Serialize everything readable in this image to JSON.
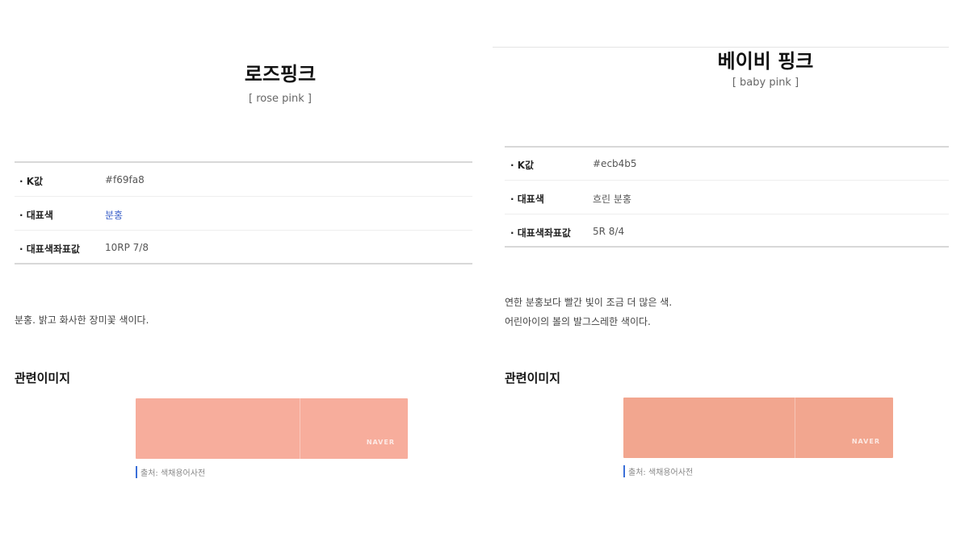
{
  "left": {
    "title": "로즈핑크",
    "subtitle": "[ rose pink ]",
    "rows": [
      {
        "label": "· K값",
        "value": "#f69fa8"
      },
      {
        "label": "· 대표색",
        "value": "분홍"
      },
      {
        "label": "· 대표색좌표값",
        "value": "10RP 7/8"
      }
    ],
    "description": [
      "분홍. 밝고 화사한 장미꽃 색이다."
    ],
    "related_heading": "관련이미지",
    "image_color": "#f7ad9c",
    "watermark": "NAVER",
    "source": "출처: 색채용어사전"
  },
  "right": {
    "title": "베이비 핑크",
    "subtitle": "[ baby pink ]",
    "rows": [
      {
        "label": "· K값",
        "value": "#ecb4b5"
      },
      {
        "label": "· 대표색",
        "value": "흐린 분홍"
      },
      {
        "label": "· 대표색좌표값",
        "value": "5R 8/4"
      }
    ],
    "description": [
      "연한 분홍보다 빨간 빛이 조금 더 많은 색.",
      "어린아이의 볼의 발그스레한 색이다."
    ],
    "related_heading": "관련이미지",
    "image_color": "#f2a68f",
    "watermark": "NAVER",
    "source": "출처: 색채용어사전"
  },
  "colors": {
    "link": "#3a5fc8"
  }
}
